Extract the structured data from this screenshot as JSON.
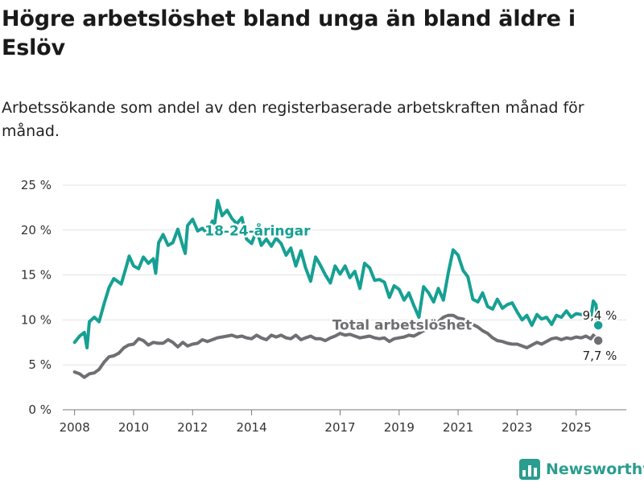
{
  "header": {
    "title": "Högre arbetslöshet bland unga än bland äldre i Eslöv",
    "subtitle": "Arbetssökande som andel av den registerbaserade arbetskraften månad för månad."
  },
  "brand": {
    "name": "Newsworthy",
    "icon": "bar-chart-logo-icon",
    "color": "#2a9d8f"
  },
  "chart_data": {
    "type": "line",
    "title": "Högre arbetslöshet bland unga än bland äldre i Eslöv",
    "subtitle": "Arbetssökande som andel av den registerbaserade arbetskraften månad för månad.",
    "xlabel": "",
    "ylabel": "",
    "grid": true,
    "xlim": [
      2007.6,
      2026.7
    ],
    "ylim": [
      0,
      25
    ],
    "y_ticks": [
      {
        "value": 0,
        "label": "0 %"
      },
      {
        "value": 5,
        "label": "5 %"
      },
      {
        "value": 10,
        "label": "10 %"
      },
      {
        "value": 15,
        "label": "15 %"
      },
      {
        "value": 20,
        "label": "20 %"
      },
      {
        "value": 25,
        "label": "25 %"
      }
    ],
    "x_ticks": [
      {
        "value": 2008,
        "label": "2008"
      },
      {
        "value": 2010,
        "label": "2010"
      },
      {
        "value": 2012,
        "label": "2012"
      },
      {
        "value": 2014,
        "label": "2014"
      },
      {
        "value": 2017,
        "label": "2017"
      },
      {
        "value": 2019,
        "label": "2019"
      },
      {
        "value": 2021,
        "label": "2021"
      },
      {
        "value": 2023,
        "label": "2023"
      },
      {
        "value": 2025,
        "label": "2025"
      }
    ],
    "series": [
      {
        "name": "18-24-åringar",
        "label": "18-24-åringar",
        "color": "#16a093",
        "end_label": "9,4 %",
        "end_value": 9.4,
        "points": [
          [
            2008.0,
            7.5
          ],
          [
            2008.17,
            8.2
          ],
          [
            2008.33,
            8.6
          ],
          [
            2008.42,
            6.9
          ],
          [
            2008.5,
            9.8
          ],
          [
            2008.67,
            10.3
          ],
          [
            2008.83,
            9.8
          ],
          [
            2009.0,
            11.8
          ],
          [
            2009.17,
            13.6
          ],
          [
            2009.33,
            14.6
          ],
          [
            2009.58,
            14.0
          ],
          [
            2009.75,
            15.9
          ],
          [
            2009.85,
            17.1
          ],
          [
            2010.0,
            16.0
          ],
          [
            2010.17,
            15.7
          ],
          [
            2010.33,
            17.0
          ],
          [
            2010.5,
            16.3
          ],
          [
            2010.67,
            16.8
          ],
          [
            2010.75,
            15.2
          ],
          [
            2010.85,
            18.6
          ],
          [
            2011.0,
            19.5
          ],
          [
            2011.17,
            18.3
          ],
          [
            2011.33,
            18.6
          ],
          [
            2011.5,
            20.1
          ],
          [
            2011.67,
            18.2
          ],
          [
            2011.75,
            17.4
          ],
          [
            2011.83,
            20.5
          ],
          [
            2012.0,
            21.2
          ],
          [
            2012.17,
            19.9
          ],
          [
            2012.33,
            20.2
          ],
          [
            2012.5,
            19.6
          ],
          [
            2012.67,
            21.0
          ],
          [
            2012.75,
            20.7
          ],
          [
            2012.85,
            23.3
          ],
          [
            2013.0,
            21.6
          ],
          [
            2013.17,
            22.2
          ],
          [
            2013.33,
            21.3
          ],
          [
            2013.5,
            20.7
          ],
          [
            2013.67,
            21.4
          ],
          [
            2013.83,
            19.0
          ],
          [
            2014.0,
            18.5
          ],
          [
            2014.17,
            20.0
          ],
          [
            2014.33,
            18.3
          ],
          [
            2014.5,
            19.0
          ],
          [
            2014.67,
            18.2
          ],
          [
            2014.83,
            19.1
          ],
          [
            2015.0,
            18.5
          ],
          [
            2015.17,
            17.2
          ],
          [
            2015.33,
            18.0
          ],
          [
            2015.5,
            16.0
          ],
          [
            2015.67,
            17.7
          ],
          [
            2015.83,
            15.8
          ],
          [
            2016.0,
            14.3
          ],
          [
            2016.17,
            17.0
          ],
          [
            2016.33,
            16.1
          ],
          [
            2016.5,
            15.0
          ],
          [
            2016.67,
            14.1
          ],
          [
            2016.83,
            16.0
          ],
          [
            2017.0,
            15.1
          ],
          [
            2017.17,
            16.0
          ],
          [
            2017.33,
            14.7
          ],
          [
            2017.5,
            15.4
          ],
          [
            2017.67,
            13.5
          ],
          [
            2017.83,
            16.3
          ],
          [
            2018.0,
            15.8
          ],
          [
            2018.17,
            14.4
          ],
          [
            2018.33,
            14.5
          ],
          [
            2018.5,
            14.2
          ],
          [
            2018.67,
            12.5
          ],
          [
            2018.83,
            13.8
          ],
          [
            2019.0,
            13.4
          ],
          [
            2019.17,
            12.2
          ],
          [
            2019.33,
            13.0
          ],
          [
            2019.5,
            11.6
          ],
          [
            2019.67,
            10.3
          ],
          [
            2019.83,
            13.7
          ],
          [
            2020.0,
            13.0
          ],
          [
            2020.17,
            12.0
          ],
          [
            2020.33,
            13.5
          ],
          [
            2020.5,
            12.2
          ],
          [
            2020.67,
            15.3
          ],
          [
            2020.83,
            17.8
          ],
          [
            2021.0,
            17.2
          ],
          [
            2021.17,
            15.5
          ],
          [
            2021.33,
            14.8
          ],
          [
            2021.5,
            12.3
          ],
          [
            2021.67,
            12.0
          ],
          [
            2021.83,
            13.0
          ],
          [
            2022.0,
            11.5
          ],
          [
            2022.17,
            11.2
          ],
          [
            2022.33,
            12.3
          ],
          [
            2022.5,
            11.3
          ],
          [
            2022.67,
            11.7
          ],
          [
            2022.83,
            11.9
          ],
          [
            2023.0,
            10.9
          ],
          [
            2023.17,
            10.0
          ],
          [
            2023.33,
            10.5
          ],
          [
            2023.5,
            9.4
          ],
          [
            2023.67,
            10.6
          ],
          [
            2023.83,
            10.1
          ],
          [
            2024.0,
            10.3
          ],
          [
            2024.17,
            9.5
          ],
          [
            2024.33,
            10.5
          ],
          [
            2024.5,
            10.3
          ],
          [
            2024.67,
            11.0
          ],
          [
            2024.83,
            10.3
          ],
          [
            2025.0,
            10.7
          ],
          [
            2025.17,
            10.6
          ],
          [
            2025.33,
            10.8
          ],
          [
            2025.5,
            10.3
          ],
          [
            2025.58,
            12.1
          ],
          [
            2025.67,
            11.7
          ],
          [
            2025.75,
            9.4
          ]
        ]
      },
      {
        "name": "Total arbetslöshet",
        "label": "Total arbetslöshet",
        "color": "#6f6f73",
        "end_label": "7,7 %",
        "end_value": 7.7,
        "points": [
          [
            2008.0,
            4.2
          ],
          [
            2008.17,
            4.0
          ],
          [
            2008.33,
            3.6
          ],
          [
            2008.5,
            4.0
          ],
          [
            2008.67,
            4.1
          ],
          [
            2008.83,
            4.5
          ],
          [
            2009.0,
            5.3
          ],
          [
            2009.17,
            5.9
          ],
          [
            2009.33,
            6.0
          ],
          [
            2009.5,
            6.3
          ],
          [
            2009.67,
            6.9
          ],
          [
            2009.83,
            7.2
          ],
          [
            2010.0,
            7.3
          ],
          [
            2010.17,
            7.9
          ],
          [
            2010.33,
            7.7
          ],
          [
            2010.5,
            7.2
          ],
          [
            2010.67,
            7.5
          ],
          [
            2010.83,
            7.4
          ],
          [
            2011.0,
            7.4
          ],
          [
            2011.17,
            7.8
          ],
          [
            2011.33,
            7.5
          ],
          [
            2011.5,
            7.0
          ],
          [
            2011.67,
            7.5
          ],
          [
            2011.83,
            7.1
          ],
          [
            2012.0,
            7.3
          ],
          [
            2012.17,
            7.4
          ],
          [
            2012.33,
            7.8
          ],
          [
            2012.5,
            7.6
          ],
          [
            2012.67,
            7.8
          ],
          [
            2012.83,
            8.0
          ],
          [
            2013.0,
            8.1
          ],
          [
            2013.17,
            8.2
          ],
          [
            2013.33,
            8.3
          ],
          [
            2013.5,
            8.1
          ],
          [
            2013.67,
            8.2
          ],
          [
            2013.83,
            8.0
          ],
          [
            2014.0,
            7.9
          ],
          [
            2014.17,
            8.3
          ],
          [
            2014.33,
            8.0
          ],
          [
            2014.5,
            7.8
          ],
          [
            2014.67,
            8.3
          ],
          [
            2014.83,
            8.1
          ],
          [
            2015.0,
            8.3
          ],
          [
            2015.17,
            8.0
          ],
          [
            2015.33,
            7.9
          ],
          [
            2015.5,
            8.3
          ],
          [
            2015.67,
            7.8
          ],
          [
            2015.83,
            8.0
          ],
          [
            2016.0,
            8.2
          ],
          [
            2016.17,
            7.9
          ],
          [
            2016.33,
            7.9
          ],
          [
            2016.5,
            7.7
          ],
          [
            2016.67,
            8.0
          ],
          [
            2016.83,
            8.2
          ],
          [
            2017.0,
            8.5
          ],
          [
            2017.17,
            8.3
          ],
          [
            2017.33,
            8.4
          ],
          [
            2017.5,
            8.2
          ],
          [
            2017.67,
            8.0
          ],
          [
            2017.83,
            8.1
          ],
          [
            2018.0,
            8.2
          ],
          [
            2018.17,
            8.0
          ],
          [
            2018.33,
            7.9
          ],
          [
            2018.5,
            8.0
          ],
          [
            2018.67,
            7.6
          ],
          [
            2018.83,
            7.9
          ],
          [
            2019.0,
            8.0
          ],
          [
            2019.17,
            8.1
          ],
          [
            2019.33,
            8.3
          ],
          [
            2019.5,
            8.2
          ],
          [
            2019.67,
            8.5
          ],
          [
            2019.83,
            8.8
          ],
          [
            2020.0,
            9.0
          ],
          [
            2020.17,
            9.3
          ],
          [
            2020.33,
            9.8
          ],
          [
            2020.5,
            10.3
          ],
          [
            2020.67,
            10.5
          ],
          [
            2020.83,
            10.5
          ],
          [
            2021.0,
            10.2
          ],
          [
            2021.17,
            10.1
          ],
          [
            2021.33,
            9.8
          ],
          [
            2021.5,
            9.5
          ],
          [
            2021.67,
            9.2
          ],
          [
            2021.83,
            8.8
          ],
          [
            2022.0,
            8.5
          ],
          [
            2022.17,
            8.0
          ],
          [
            2022.33,
            7.7
          ],
          [
            2022.5,
            7.6
          ],
          [
            2022.67,
            7.4
          ],
          [
            2022.83,
            7.3
          ],
          [
            2023.0,
            7.3
          ],
          [
            2023.17,
            7.1
          ],
          [
            2023.33,
            6.9
          ],
          [
            2023.5,
            7.2
          ],
          [
            2023.67,
            7.5
          ],
          [
            2023.83,
            7.3
          ],
          [
            2024.0,
            7.6
          ],
          [
            2024.17,
            7.9
          ],
          [
            2024.33,
            8.0
          ],
          [
            2024.5,
            7.8
          ],
          [
            2024.67,
            8.0
          ],
          [
            2024.83,
            7.9
          ],
          [
            2025.0,
            8.1
          ],
          [
            2025.17,
            8.0
          ],
          [
            2025.33,
            8.2
          ],
          [
            2025.5,
            7.9
          ],
          [
            2025.58,
            8.3
          ],
          [
            2025.67,
            8.0
          ],
          [
            2025.75,
            7.7
          ]
        ]
      }
    ]
  }
}
